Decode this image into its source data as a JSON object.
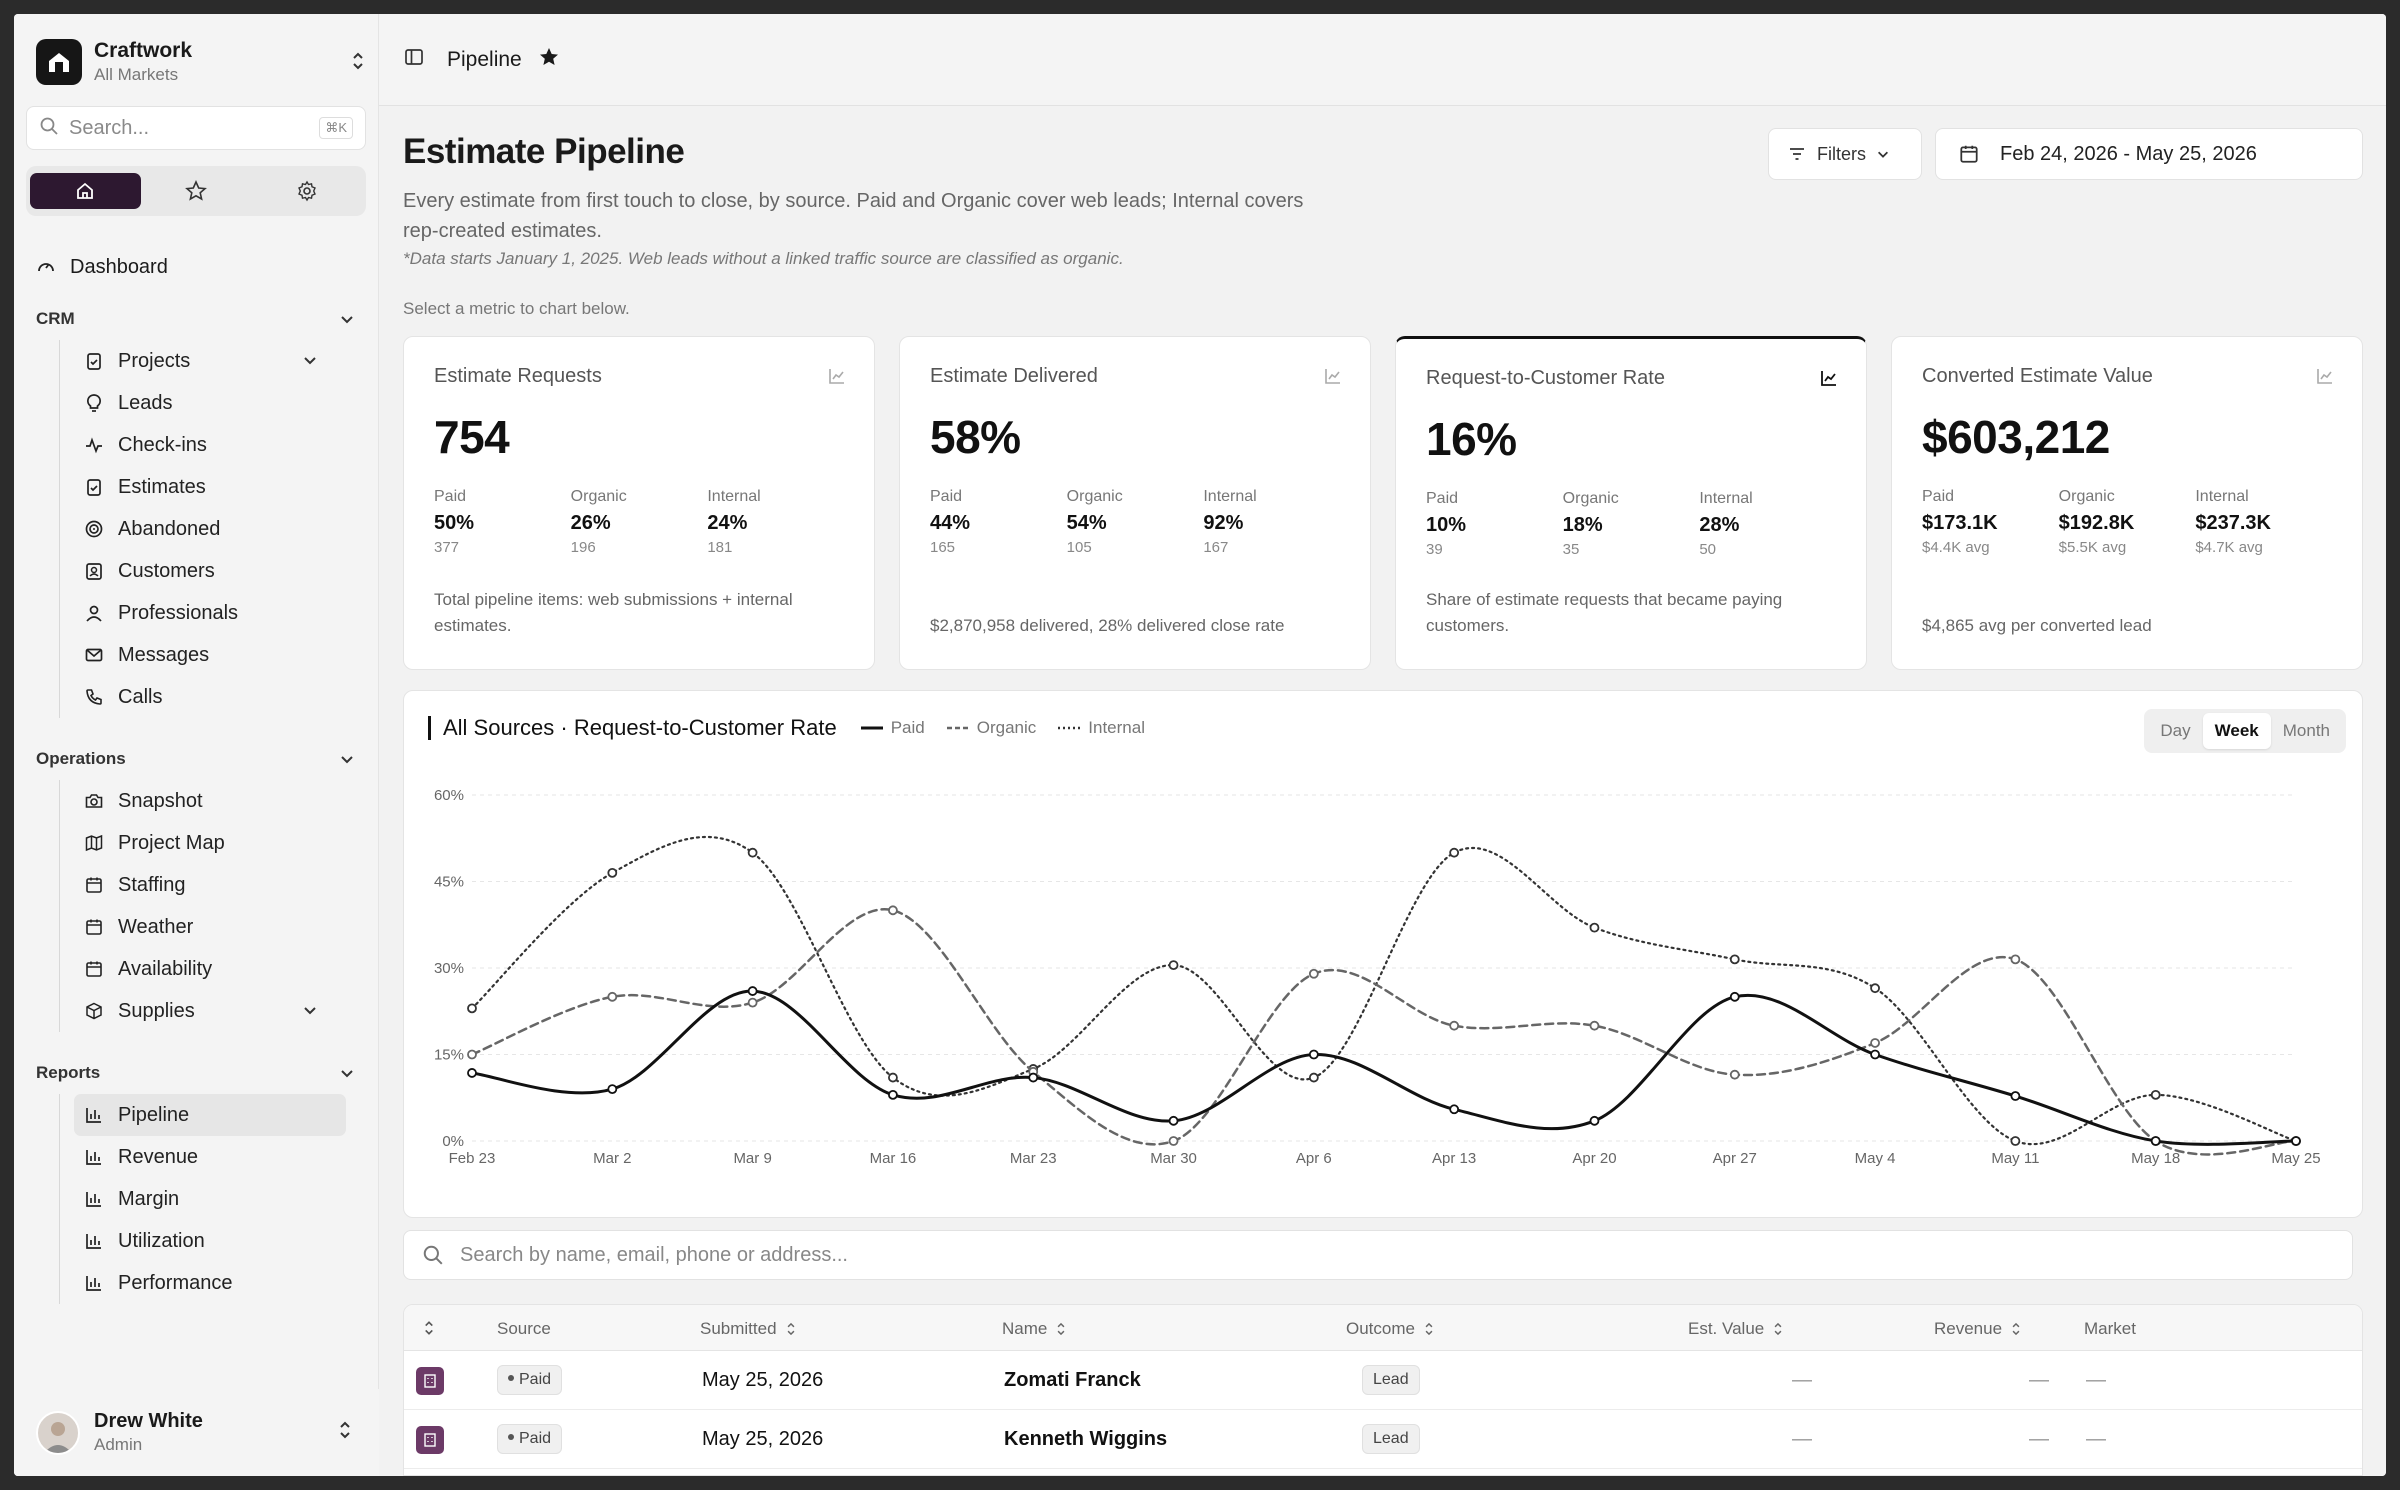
{
  "brand": {
    "name": "Craftwork",
    "subtitle": "All Markets"
  },
  "sidebar": {
    "search_placeholder": "Search...",
    "search_shortcut": "⌘K",
    "dashboard_label": "Dashboard",
    "crm": {
      "label": "CRM",
      "items": [
        "Projects",
        "Leads",
        "Check-ins",
        "Estimates",
        "Abandoned",
        "Customers",
        "Professionals",
        "Messages",
        "Calls"
      ]
    },
    "operations": {
      "label": "Operations",
      "items": [
        "Snapshot",
        "Project Map",
        "Staffing",
        "Weather",
        "Availability",
        "Supplies"
      ]
    },
    "reports": {
      "label": "Reports",
      "items": [
        "Pipeline",
        "Revenue",
        "Margin",
        "Utilization",
        "Performance"
      ]
    }
  },
  "user": {
    "name": "Drew White",
    "role": "Admin"
  },
  "topbar": {
    "breadcrumb": "Pipeline"
  },
  "page": {
    "title": "Estimate Pipeline",
    "description": "Every estimate from first touch to close, by source. Paid and Organic cover web leads; Internal covers rep-created estimates.",
    "note": "*Data starts January 1, 2025. Web leads without a linked traffic source are classified as organic.",
    "hint": "Select a metric to chart below.",
    "filters_label": "Filters",
    "date_range": "Feb 24, 2026 - May 25, 2026"
  },
  "cards": [
    {
      "title": "Estimate Requests",
      "value": "754",
      "splits": [
        {
          "label": "Paid",
          "value": "50%",
          "sub": "377"
        },
        {
          "label": "Organic",
          "value": "26%",
          "sub": "196"
        },
        {
          "label": "Internal",
          "value": "24%",
          "sub": "181"
        }
      ],
      "foot": "Total pipeline items: web submissions + internal estimates."
    },
    {
      "title": "Estimate Delivered",
      "value": "58%",
      "splits": [
        {
          "label": "Paid",
          "value": "44%",
          "sub": "165"
        },
        {
          "label": "Organic",
          "value": "54%",
          "sub": "105"
        },
        {
          "label": "Internal",
          "value": "92%",
          "sub": "167"
        }
      ],
      "foot": "$2,870,958 delivered, 28% delivered close rate"
    },
    {
      "title": "Request-to-Customer Rate",
      "value": "16%",
      "splits": [
        {
          "label": "Paid",
          "value": "10%",
          "sub": "39"
        },
        {
          "label": "Organic",
          "value": "18%",
          "sub": "35"
        },
        {
          "label": "Internal",
          "value": "28%",
          "sub": "50"
        }
      ],
      "foot": "Share of estimate requests that became paying customers."
    },
    {
      "title": "Converted Estimate Value",
      "value": "$603,212",
      "splits": [
        {
          "label": "Paid",
          "value": "$173.1K",
          "sub": "$4.4K avg"
        },
        {
          "label": "Organic",
          "value": "$192.8K",
          "sub": "$5.5K avg"
        },
        {
          "label": "Internal",
          "value": "$237.3K",
          "sub": "$4.7K avg"
        }
      ],
      "foot": "$4,865 avg per converted lead"
    }
  ],
  "chart": {
    "title": "All Sources · Request-to-Customer Rate",
    "granularity": [
      "Day",
      "Week",
      "Month"
    ],
    "granularity_selected": "Week"
  },
  "chart_data": {
    "type": "line",
    "x": [
      "Feb 23",
      "Mar 2",
      "Mar 9",
      "Mar 16",
      "Mar 23",
      "Mar 30",
      "Apr 6",
      "Apr 13",
      "Apr 20",
      "Apr 27",
      "May 4",
      "May 11",
      "May 18",
      "May 25"
    ],
    "yticks": [
      "0%",
      "15%",
      "30%",
      "45%",
      "60%"
    ],
    "ylim": [
      0,
      60
    ],
    "grid": true,
    "legend_position": "top",
    "series": [
      {
        "name": "Paid",
        "style": "solid",
        "values": [
          11.8,
          9,
          26,
          8,
          11,
          3.5,
          15,
          5.5,
          3.5,
          25,
          15,
          7.8,
          0,
          0
        ]
      },
      {
        "name": "Organic",
        "style": "dashed",
        "values": [
          15,
          25,
          24,
          40,
          12,
          0,
          29,
          20,
          20,
          11.5,
          17,
          31.5,
          0,
          0
        ]
      },
      {
        "name": "Internal",
        "style": "dotted",
        "values": [
          23,
          46.5,
          50,
          11,
          12.5,
          30.5,
          11,
          50,
          37,
          31.5,
          26.5,
          0,
          8,
          0
        ]
      }
    ]
  },
  "table": {
    "search_placeholder": "Search by name, email, phone or address...",
    "columns": [
      "Source",
      "Submitted",
      "Name",
      "Outcome",
      "Est. Value",
      "Revenue",
      "Market"
    ],
    "rows": [
      {
        "source": "Paid",
        "submitted": "May 25, 2026",
        "name": "Zomati Franck",
        "outcome": "Lead",
        "est_value": "—",
        "revenue": "—",
        "market": "—"
      },
      {
        "source": "Paid",
        "submitted": "May 25, 2026",
        "name": "Kenneth Wiggins",
        "outcome": "Lead",
        "est_value": "—",
        "revenue": "—",
        "market": "—"
      }
    ]
  }
}
